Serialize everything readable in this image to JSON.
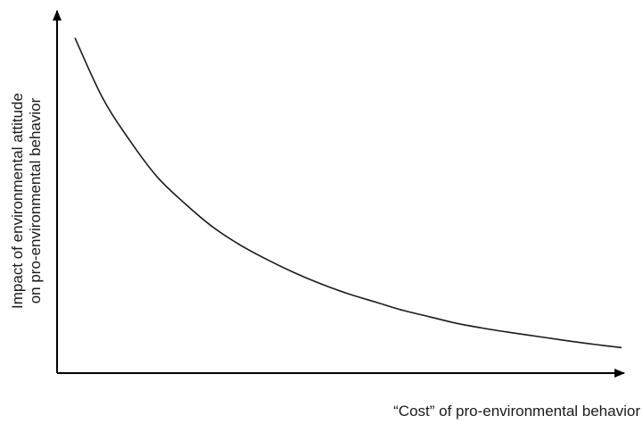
{
  "chart_data": {
    "type": "line",
    "title": "",
    "xlabel": "“Cost” of pro-environmental behavior",
    "ylabel": {
      "line1": "Impact of environmental attitude",
      "line2": "on pro-environmental behavior"
    },
    "xlim": [
      0,
      1
    ],
    "ylim": [
      0,
      1
    ],
    "ticks": "none",
    "grid": false,
    "legend": "none",
    "series": [
      {
        "x": [
          0.0,
          0.05,
          0.1,
          0.15,
          0.2,
          0.25,
          0.3,
          0.35,
          0.4,
          0.45,
          0.5,
          0.55,
          0.6,
          0.65,
          0.7,
          0.75,
          0.8,
          0.85,
          0.9,
          0.95,
          1.0
        ],
        "values": [
          0.98,
          0.8,
          0.67,
          0.56,
          0.48,
          0.41,
          0.355,
          0.31,
          0.27,
          0.235,
          0.205,
          0.18,
          0.155,
          0.135,
          0.115,
          0.1,
          0.087,
          0.075,
          0.063,
          0.052,
          0.042
        ]
      }
    ],
    "colors": {
      "axis": "#000000",
      "line": "#1a1a1a"
    }
  }
}
